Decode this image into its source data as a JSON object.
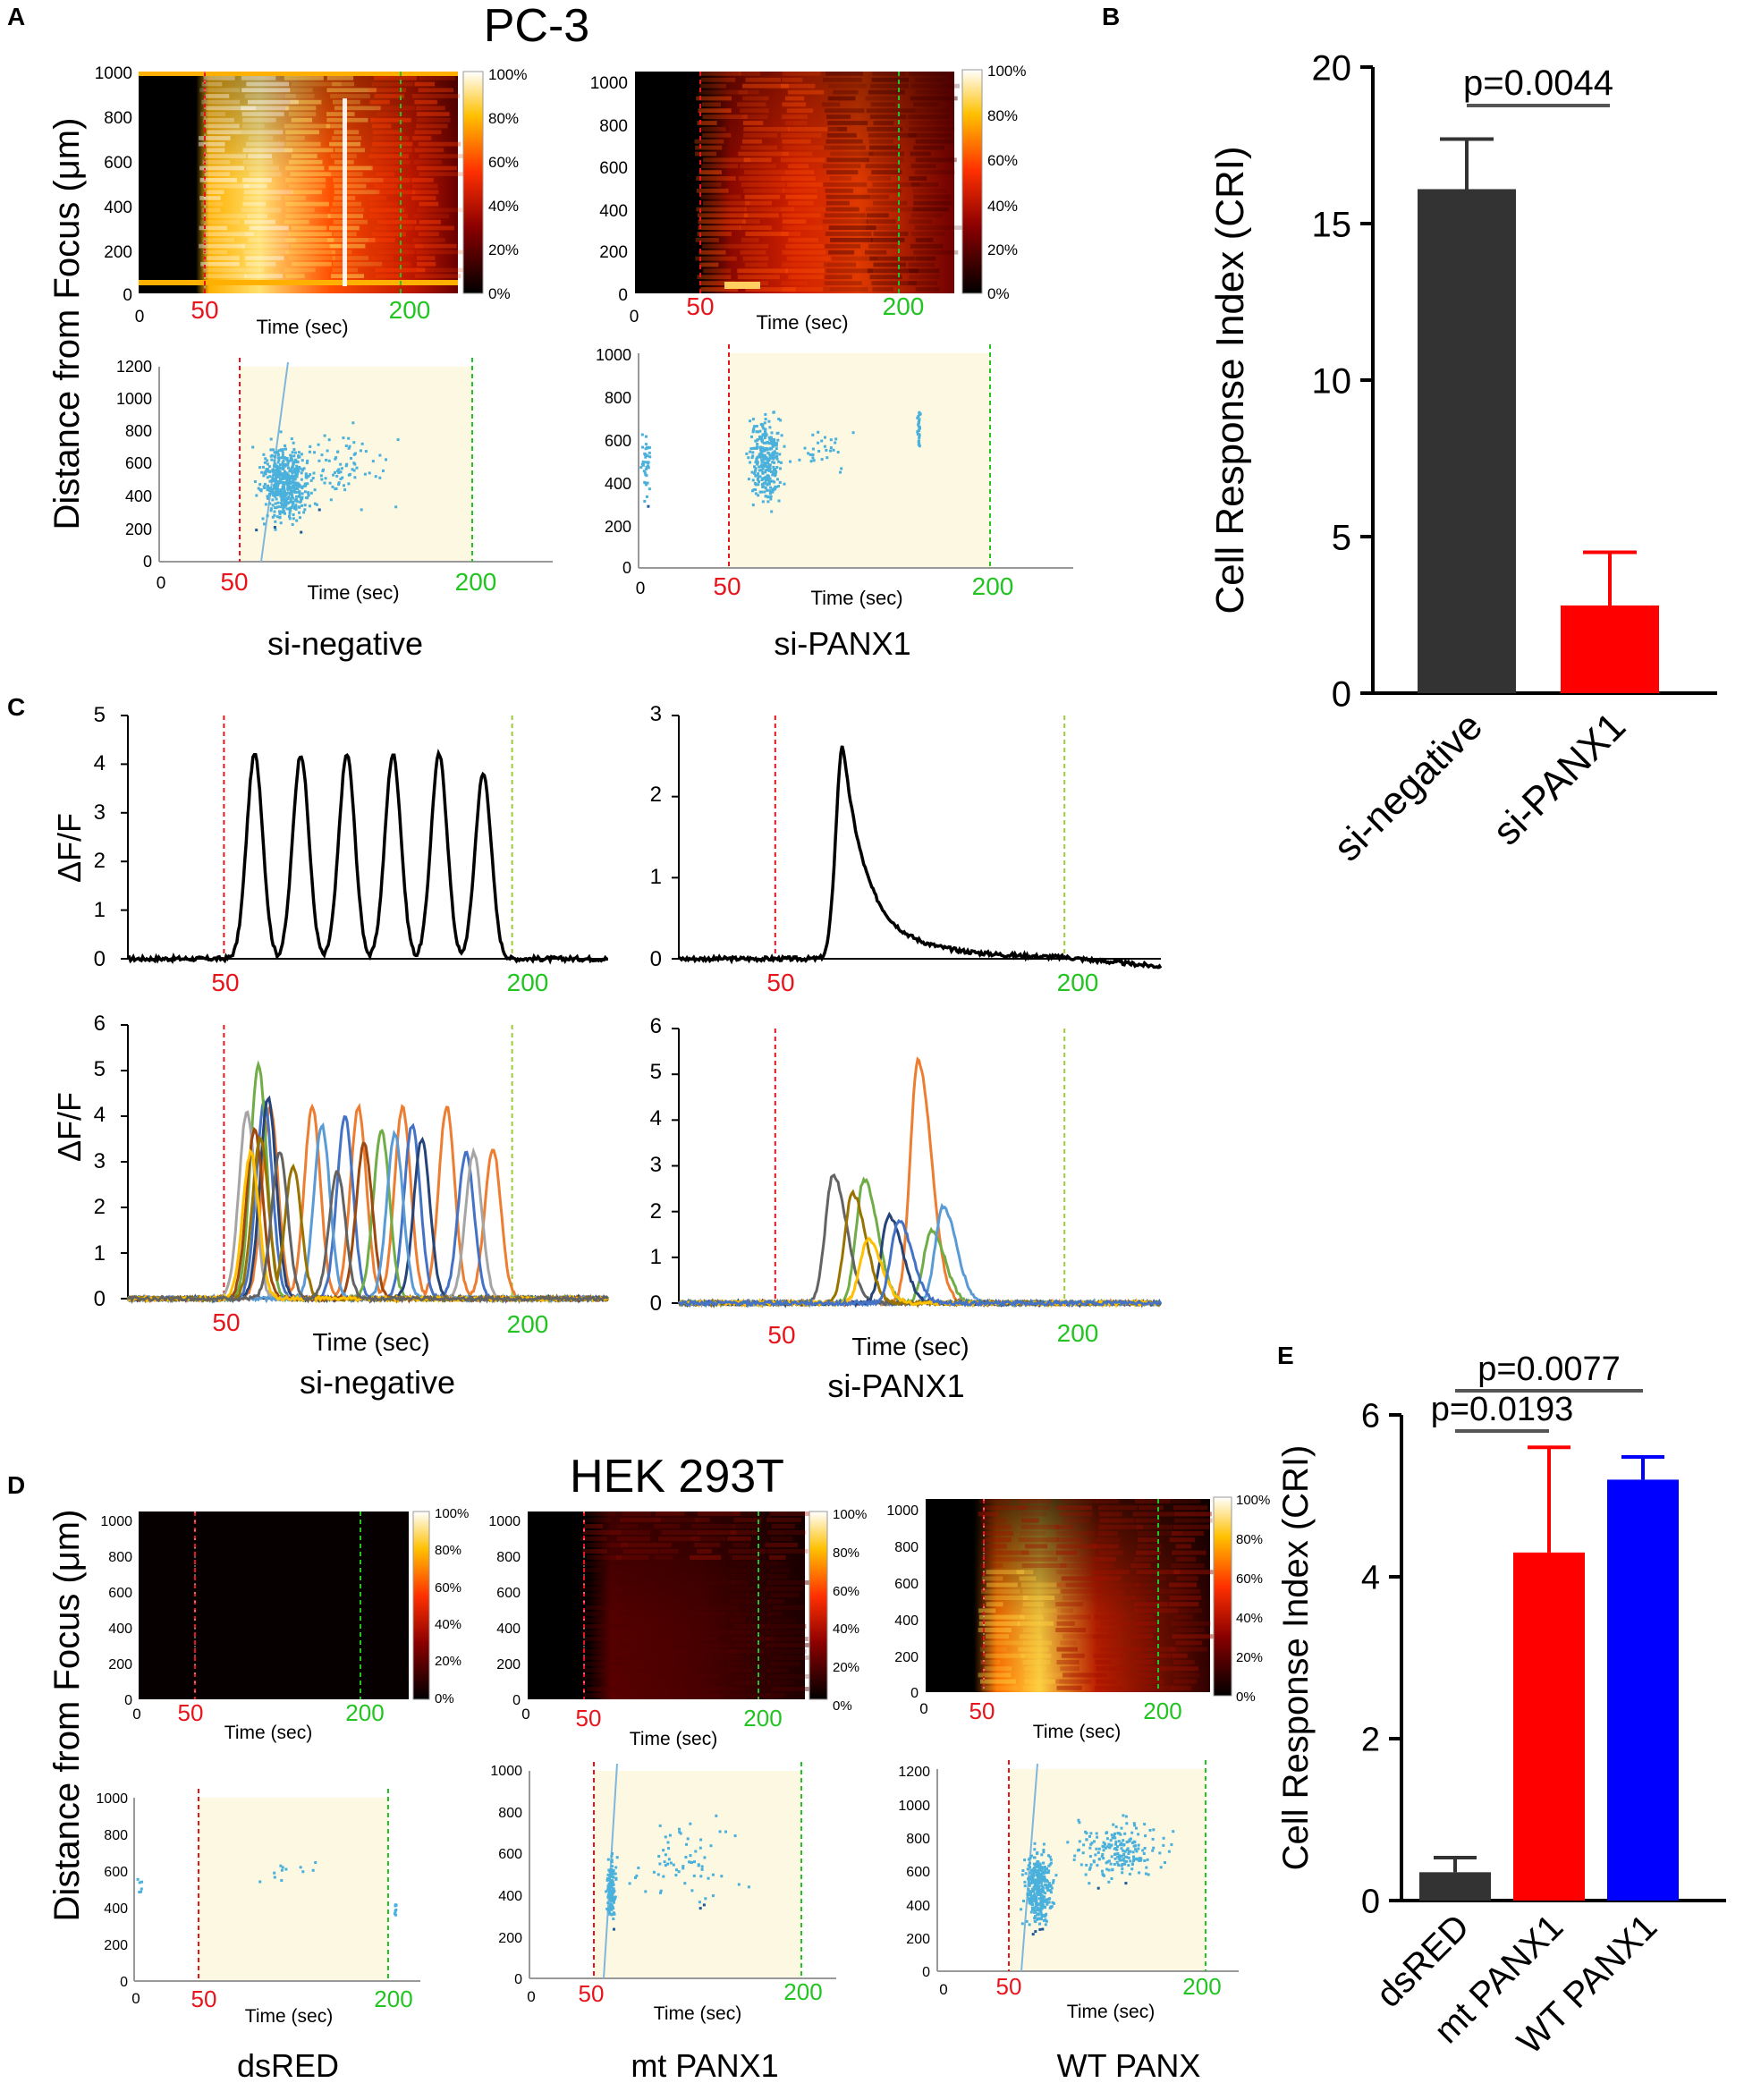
{
  "panel_letters": {
    "a": "A",
    "b": "B",
    "c": "C",
    "d": "D",
    "e": "E"
  },
  "colors": {
    "red_marker": "#e8141c",
    "green_marker": "#22c422",
    "bar_dark": "#333333",
    "bar_red": "#ff0000",
    "bar_blue": "#0000ff",
    "scatter": "#4ab0dc",
    "cream": "#fdf8e2"
  },
  "panel_a": {
    "title": "PC-3",
    "ylabel": "Distance from Focus (μm)",
    "xlabel": "Time (sec)",
    "start_label": "50",
    "end_label": "200",
    "zero": "0",
    "heat_yticks": [
      "0",
      "200",
      "400",
      "600",
      "800",
      "1000"
    ],
    "colorbar_ticks": [
      "0%",
      "20%",
      "40%",
      "60%",
      "80%",
      "100%"
    ],
    "scatter_left_yticks": [
      "0",
      "200",
      "400",
      "600",
      "800",
      "1000",
      "1200"
    ],
    "scatter_right_yticks": [
      "0",
      "200",
      "400",
      "600",
      "800",
      "1000"
    ],
    "left_caption": "si-negative",
    "right_caption": "si-PANX1"
  },
  "panel_c": {
    "ylabel": "ΔF/F",
    "xlabel": "Time (sec)",
    "start_label": "50",
    "end_label": "200",
    "top_left_yticks": [
      "0",
      "1",
      "2",
      "3",
      "4",
      "5"
    ],
    "top_right_yticks": [
      "0",
      "1",
      "2",
      "3"
    ],
    "bottom_yticks": [
      "0",
      "1",
      "2",
      "3",
      "4",
      "5",
      "6"
    ],
    "left_caption": "si-negative",
    "right_caption": "si-PANX1"
  },
  "panel_d": {
    "title": "HEK 293T",
    "ylabel": "Distance from Focus (μm)",
    "xlabel": "Time (sec)",
    "start_label": "50",
    "end_label": "200",
    "zero": "0",
    "heat_yticks": [
      "0",
      "200",
      "400",
      "600",
      "800",
      "1000"
    ],
    "colorbar_ticks": [
      "0%",
      "20%",
      "40%",
      "60%",
      "80%",
      "100%"
    ],
    "scatter_yticks_1000": [
      "0",
      "200",
      "400",
      "600",
      "800",
      "1000"
    ],
    "scatter_yticks_1200": [
      "0",
      "200",
      "400",
      "600",
      "800",
      "1000",
      "1200"
    ],
    "captions": [
      "dsRED",
      "mt PANX1",
      "WT PANX"
    ]
  },
  "chart_data": [
    {
      "id": "B",
      "type": "bar",
      "title": "",
      "xlabel": "",
      "ylabel": "Cell Response Index (CRI)",
      "categories": [
        "si-negative",
        "si-PANX1"
      ],
      "values": [
        16.1,
        2.8
      ],
      "errors": [
        1.6,
        1.7
      ],
      "colors": [
        "#333333",
        "#ff0000"
      ],
      "ylim": [
        0,
        20
      ],
      "yticks": [
        0,
        5,
        10,
        15,
        20
      ],
      "annotations": [
        {
          "text": "p=0.0044",
          "from": 0,
          "to": 1
        }
      ]
    },
    {
      "id": "E",
      "type": "bar",
      "title": "",
      "xlabel": "",
      "ylabel": "Cell Response Index (CRI)",
      "categories": [
        "dsRED",
        "mt PANX1",
        "WT PANX1"
      ],
      "values": [
        0.35,
        4.3,
        5.2
      ],
      "errors": [
        0.18,
        1.3,
        0.28
      ],
      "colors": [
        "#333333",
        "#ff0000",
        "#0000ff"
      ],
      "ylim": [
        0,
        6
      ],
      "yticks": [
        0,
        2,
        4,
        6
      ],
      "annotations": [
        {
          "text": "p=0.0193",
          "from": 0,
          "to": 1
        },
        {
          "text": "p=0.0077",
          "from": 0,
          "to": 2
        }
      ]
    },
    {
      "id": "C-top-si-negative",
      "type": "line",
      "xlabel": "Time (sec)",
      "ylabel": "ΔF/F",
      "xlim": [
        0,
        250
      ],
      "ylim": [
        0,
        5
      ],
      "markers": [
        50,
        200
      ],
      "peaks": [
        {
          "t": 66,
          "h": 4.2
        },
        {
          "t": 90,
          "h": 4.2
        },
        {
          "t": 114,
          "h": 4.2
        },
        {
          "t": 138,
          "h": 4.2
        },
        {
          "t": 162,
          "h": 4.2
        },
        {
          "t": 185,
          "h": 3.8
        }
      ]
    },
    {
      "id": "C-top-si-PANX1",
      "type": "line",
      "xlabel": "Time (sec)",
      "ylabel": "ΔF/F",
      "xlim": [
        0,
        250
      ],
      "ylim": [
        0,
        3
      ],
      "markers": [
        50,
        200
      ],
      "peaks": [
        {
          "t": 85,
          "h": 2.65
        }
      ]
    },
    {
      "id": "C-bottom-si-negative",
      "type": "line",
      "xlabel": "Time (sec)",
      "ylabel": "ΔF/F",
      "xlim": [
        0,
        250
      ],
      "ylim": [
        0,
        6
      ],
      "markers": [
        50,
        200
      ],
      "series": [
        {
          "name": "cell1",
          "color": "#ed7d31",
          "peaks": [
            {
              "t": 74,
              "h": 4.2
            },
            {
              "t": 96,
              "h": 4.2
            },
            {
              "t": 120,
              "h": 4.2
            },
            {
              "t": 143,
              "h": 4.2
            },
            {
              "t": 166,
              "h": 4.2
            },
            {
              "t": 190,
              "h": 3.3
            }
          ]
        },
        {
          "name": "cell2",
          "color": "#4472c4",
          "peaks": [
            {
              "t": 71,
              "h": 4.3
            },
            {
              "t": 113,
              "h": 4.0
            },
            {
              "t": 148,
              "h": 3.8
            },
            {
              "t": 176,
              "h": 3.2
            }
          ]
        },
        {
          "name": "cell3",
          "color": "#70ad47",
          "peaks": [
            {
              "t": 68,
              "h": 5.1
            },
            {
              "t": 132,
              "h": 3.7
            }
          ]
        },
        {
          "name": "cell4",
          "color": "#a5a5a5",
          "peaks": [
            {
              "t": 62,
              "h": 4.1
            },
            {
              "t": 180,
              "h": 3.2
            }
          ]
        },
        {
          "name": "cell5",
          "color": "#264478",
          "peaks": [
            {
              "t": 73,
              "h": 4.4
            },
            {
              "t": 153,
              "h": 3.5
            }
          ]
        },
        {
          "name": "cell6",
          "color": "#9e480e",
          "peaks": [
            {
              "t": 66,
              "h": 3.7
            },
            {
              "t": 123,
              "h": 3.4
            }
          ]
        },
        {
          "name": "cell7",
          "color": "#5b9bd5",
          "peaks": [
            {
              "t": 101,
              "h": 3.8
            },
            {
              "t": 139,
              "h": 3.6
            }
          ]
        },
        {
          "name": "cell8",
          "color": "#997300",
          "peaks": [
            {
              "t": 69,
              "h": 3.5
            },
            {
              "t": 86,
              "h": 2.9
            }
          ]
        },
        {
          "name": "cell9",
          "color": "#ffc000",
          "peaks": [
            {
              "t": 64,
              "h": 3.2
            }
          ]
        },
        {
          "name": "cell10",
          "color": "#636363",
          "peaks": [
            {
              "t": 79,
              "h": 3.2
            },
            {
              "t": 109,
              "h": 2.8
            }
          ]
        }
      ]
    },
    {
      "id": "C-bottom-si-PANX1",
      "type": "line",
      "xlabel": "Time (sec)",
      "ylabel": "ΔF/F",
      "xlim": [
        0,
        250
      ],
      "ylim": [
        0,
        6
      ],
      "markers": [
        50,
        200
      ],
      "series": [
        {
          "name": "cell1",
          "color": "#ed7d31",
          "peaks": [
            {
              "t": 124,
              "h": 5.3
            }
          ]
        },
        {
          "name": "cell2",
          "color": "#70ad47",
          "peaks": [
            {
              "t": 96,
              "h": 2.7
            },
            {
              "t": 131,
              "h": 1.6
            }
          ]
        },
        {
          "name": "cell3",
          "color": "#5b9bd5",
          "peaks": [
            {
              "t": 137,
              "h": 2.1
            }
          ]
        },
        {
          "name": "cell4",
          "color": "#636363",
          "peaks": [
            {
              "t": 80,
              "h": 2.8
            }
          ]
        },
        {
          "name": "cell5",
          "color": "#264478",
          "peaks": [
            {
              "t": 109,
              "h": 1.9
            }
          ]
        },
        {
          "name": "cell6",
          "color": "#997300",
          "peaks": [
            {
              "t": 90,
              "h": 2.4
            }
          ]
        },
        {
          "name": "cell7",
          "color": "#ffc000",
          "peaks": [
            {
              "t": 98,
              "h": 1.4
            }
          ]
        },
        {
          "name": "cell8",
          "color": "#4472c4",
          "peaks": [
            {
              "t": 114,
              "h": 1.8
            }
          ]
        }
      ]
    }
  ]
}
